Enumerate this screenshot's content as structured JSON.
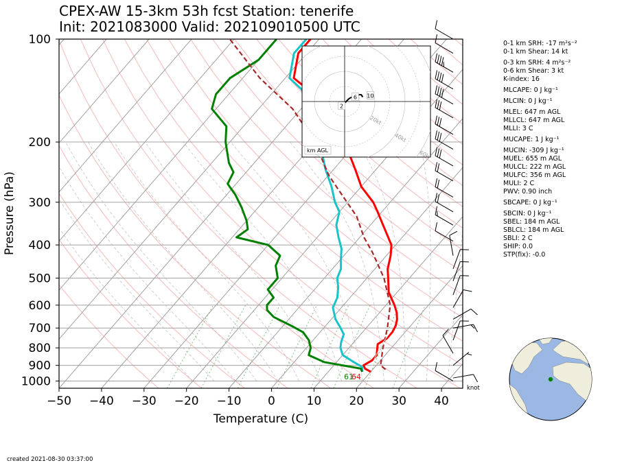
{
  "title": {
    "line1": "CPEX-AW 15-3km  53h fcst  Station: tenerife",
    "line2": "Init: 2021083000  Valid: 202109010500 UTC"
  },
  "footer": "created 2021-08-30 03:37:00",
  "barb_unit": "knot",
  "chart_data": {
    "type": "skew-t",
    "xlabel": "Temperature (C)",
    "ylabel": "Pressure (hPa)",
    "xlim": [
      -50,
      45
    ],
    "ylim": [
      1050,
      100
    ],
    "pressure_ticks": [
      100,
      200,
      300,
      400,
      500,
      600,
      700,
      800,
      900,
      1000
    ],
    "temperature_ticks": [
      -50,
      -40,
      -30,
      -20,
      -10,
      0,
      10,
      20,
      30,
      40
    ],
    "temperature_tick_labels": [
      "−50",
      "−40",
      "−30",
      "−20",
      "−10",
      "0",
      "10",
      "20",
      "30",
      "40"
    ],
    "grid": true,
    "surface_labels": {
      "dewpoint": "61",
      "temperature": "64",
      "dewpoint_color": "#008000",
      "temperature_color": "#ff0000"
    },
    "series": [
      {
        "color": "#ff0000",
        "style": "solid",
        "points": [
          [
            20,
            940
          ],
          [
            18,
            920
          ],
          [
            17,
            900
          ],
          [
            18,
            870
          ],
          [
            18,
            840
          ],
          [
            17,
            810
          ],
          [
            16,
            780
          ],
          [
            17,
            750
          ],
          [
            17,
            720
          ],
          [
            16.5,
            690
          ],
          [
            15.5,
            660
          ],
          [
            14,
            630
          ],
          [
            12,
            600
          ],
          [
            8,
            550
          ],
          [
            5,
            500
          ],
          [
            3,
            470
          ],
          [
            1,
            430
          ],
          [
            -1,
            400
          ],
          [
            -7,
            350
          ],
          [
            -11,
            320
          ],
          [
            -14,
            300
          ],
          [
            -20,
            270
          ],
          [
            -25,
            240
          ],
          [
            -33,
            200
          ],
          [
            -39,
            175
          ],
          [
            -45,
            160
          ],
          [
            -50,
            145
          ],
          [
            -58,
            130
          ],
          [
            -62,
            110
          ],
          [
            -62,
            100
          ]
        ]
      },
      {
        "color": "#1ac3c8",
        "style": "solid",
        "points": [
          [
            18,
            940
          ],
          [
            17,
            910
          ],
          [
            14,
            880
          ],
          [
            10,
            840
          ],
          [
            8,
            800
          ],
          [
            7,
            770
          ],
          [
            6,
            730
          ],
          [
            4,
            700
          ],
          [
            1,
            660
          ],
          [
            -2,
            610
          ],
          [
            -3,
            570
          ],
          [
            -5,
            530
          ],
          [
            -7,
            500
          ],
          [
            -8,
            470
          ],
          [
            -10,
            440
          ],
          [
            -12,
            410
          ],
          [
            -15,
            380
          ],
          [
            -18,
            350
          ],
          [
            -20,
            320
          ],
          [
            -23,
            300
          ],
          [
            -27,
            270
          ],
          [
            -32,
            240
          ],
          [
            -37,
            210
          ],
          [
            -42,
            180
          ],
          [
            -47,
            160
          ],
          [
            -54,
            140
          ],
          [
            -59,
            130
          ],
          [
            -63,
            110
          ],
          [
            -63,
            100
          ]
        ]
      },
      {
        "color": "#008000",
        "style": "solid",
        "points": [
          [
            18,
            940
          ],
          [
            17,
            920
          ],
          [
            12,
            900
          ],
          [
            7,
            880
          ],
          [
            2,
            840
          ],
          [
            1,
            800
          ],
          [
            0,
            780
          ],
          [
            -1,
            760
          ],
          [
            -4,
            720
          ],
          [
            -8,
            690
          ],
          [
            -14,
            650
          ],
          [
            -17,
            620
          ],
          [
            -18,
            600
          ],
          [
            -18,
            570
          ],
          [
            -20,
            550
          ],
          [
            -21,
            540
          ],
          [
            -21,
            500
          ],
          [
            -24,
            460
          ],
          [
            -25,
            430
          ],
          [
            -30,
            400
          ],
          [
            -39,
            380
          ],
          [
            -38,
            360
          ],
          [
            -40,
            340
          ],
          [
            -44,
            310
          ],
          [
            -48,
            285
          ],
          [
            -52,
            265
          ],
          [
            -53,
            245
          ],
          [
            -56,
            230
          ],
          [
            -61,
            200
          ],
          [
            -64,
            180
          ],
          [
            -71,
            160
          ],
          [
            -73,
            145
          ],
          [
            -73,
            130
          ],
          [
            -70,
            115
          ],
          [
            -70,
            100
          ]
        ]
      },
      {
        "color": "#a52a2a",
        "style": "dashed",
        "points": [
          [
            23,
            925
          ],
          [
            21,
            900
          ],
          [
            18,
            800
          ],
          [
            15,
            700
          ],
          [
            11,
            600
          ],
          [
            4,
            500
          ],
          [
            -4,
            420
          ],
          [
            -9,
            380
          ],
          [
            -15,
            330
          ],
          [
            -22,
            290
          ],
          [
            -30,
            250
          ],
          [
            -40,
            200
          ],
          [
            -52,
            160
          ],
          [
            -66,
            130
          ],
          [
            -81,
            100
          ]
        ]
      },
      {
        "color": "#ffffff",
        "style": "solid",
        "width": 1,
        "opacity": 0.8,
        "points": [
          [
            19,
            900
          ],
          [
            18,
            850
          ],
          [
            17,
            780
          ],
          [
            16.5,
            720
          ]
        ]
      }
    ],
    "wind_barbs": [
      {
        "p": 100,
        "dir": 300,
        "spd": 50
      },
      {
        "p": 110,
        "dir": 300,
        "spd": 50
      },
      {
        "p": 125,
        "dir": 300,
        "spd": 45
      },
      {
        "p": 140,
        "dir": 300,
        "spd": 40
      },
      {
        "p": 155,
        "dir": 300,
        "spd": 40
      },
      {
        "p": 170,
        "dir": 300,
        "spd": 30
      },
      {
        "p": 190,
        "dir": 300,
        "spd": 30
      },
      {
        "p": 210,
        "dir": 300,
        "spd": 30
      },
      {
        "p": 235,
        "dir": 300,
        "spd": 30
      },
      {
        "p": 260,
        "dir": 300,
        "spd": 20
      },
      {
        "p": 290,
        "dir": 300,
        "spd": 20
      },
      {
        "p": 320,
        "dir": 300,
        "spd": 20
      },
      {
        "p": 350,
        "dir": 300,
        "spd": 15
      },
      {
        "p": 390,
        "dir": 300,
        "spd": 10
      },
      {
        "p": 430,
        "dir": 350,
        "spd": 10
      },
      {
        "p": 470,
        "dir": 20,
        "spd": 10
      },
      {
        "p": 510,
        "dir": 20,
        "spd": 10
      },
      {
        "p": 560,
        "dir": 20,
        "spd": 10
      },
      {
        "p": 610,
        "dir": 30,
        "spd": 10
      },
      {
        "p": 660,
        "dir": 60,
        "spd": 10
      },
      {
        "p": 700,
        "dir": 80,
        "spd": 15
      },
      {
        "p": 760,
        "dir": 20,
        "spd": 10
      },
      {
        "p": 830,
        "dir": 330,
        "spd": 10
      },
      {
        "p": 900,
        "dir": 50,
        "spd": 5
      },
      {
        "p": 980,
        "dir": 80,
        "spd": 10
      },
      {
        "p": 1000,
        "dir": 300,
        "spd": 10
      }
    ],
    "hodograph": {
      "label": "km AGL",
      "ring_labels": [
        "20kt",
        "40kt",
        "60kt",
        "80kt"
      ],
      "height_labels": [
        "2",
        "6",
        "10"
      ],
      "path": [
        [
          -1,
          -2.5
        ],
        [
          0,
          -1
        ],
        [
          1,
          0
        ],
        [
          3,
          2
        ],
        [
          5,
          3
        ],
        [
          7,
          4
        ],
        [
          9,
          4.5
        ],
        [
          11,
          4.5
        ],
        [
          12,
          3
        ]
      ]
    }
  },
  "indices": [
    {
      "text": "0-1 km SRH: -17 m²s⁻²"
    },
    {
      "text": "0-1 km Shear: 14 kt"
    },
    {
      "text": "0-3 km SRH: 4 m²s⁻²"
    },
    {
      "text": "0-6 km Shear: 3 kt"
    },
    {
      "text": "K-index: 16"
    },
    {
      "text": "MLCAPE: 0 J kg⁻¹"
    },
    {
      "text": "MLCIN: 0 J kg⁻¹"
    },
    {
      "text": "MLEL: 647 m AGL"
    },
    {
      "text": "MLLCL: 647 m AGL"
    },
    {
      "text": "MLLI: 3 C"
    },
    {
      "text": "MUCAPE: 1 J kg⁻¹"
    },
    {
      "text": "MUCIN: -309 J kg⁻¹"
    },
    {
      "text": "MUEL: 655 m AGL"
    },
    {
      "text": "MULCL: 222 m AGL"
    },
    {
      "text": "MULFC: 356 m AGL"
    },
    {
      "text": "MULI: 2 C"
    },
    {
      "text": "PWV: 0.90 inch"
    },
    {
      "text": "SBCAPE: 0 J kg⁻¹"
    },
    {
      "text": "SBCIN: 0 J kg⁻¹"
    },
    {
      "text": "SBEL: 184 m AGL"
    },
    {
      "text": "SBLCL: 184 m AGL"
    },
    {
      "text": "SBLI: 2 C"
    },
    {
      "text": "SHIP: 0.0"
    },
    {
      "text": "STP(fix): -0.0"
    }
  ],
  "locator_globe": {
    "ocean": "#9ab8e3",
    "land": "#efeedd",
    "station_marker": "#008000"
  }
}
